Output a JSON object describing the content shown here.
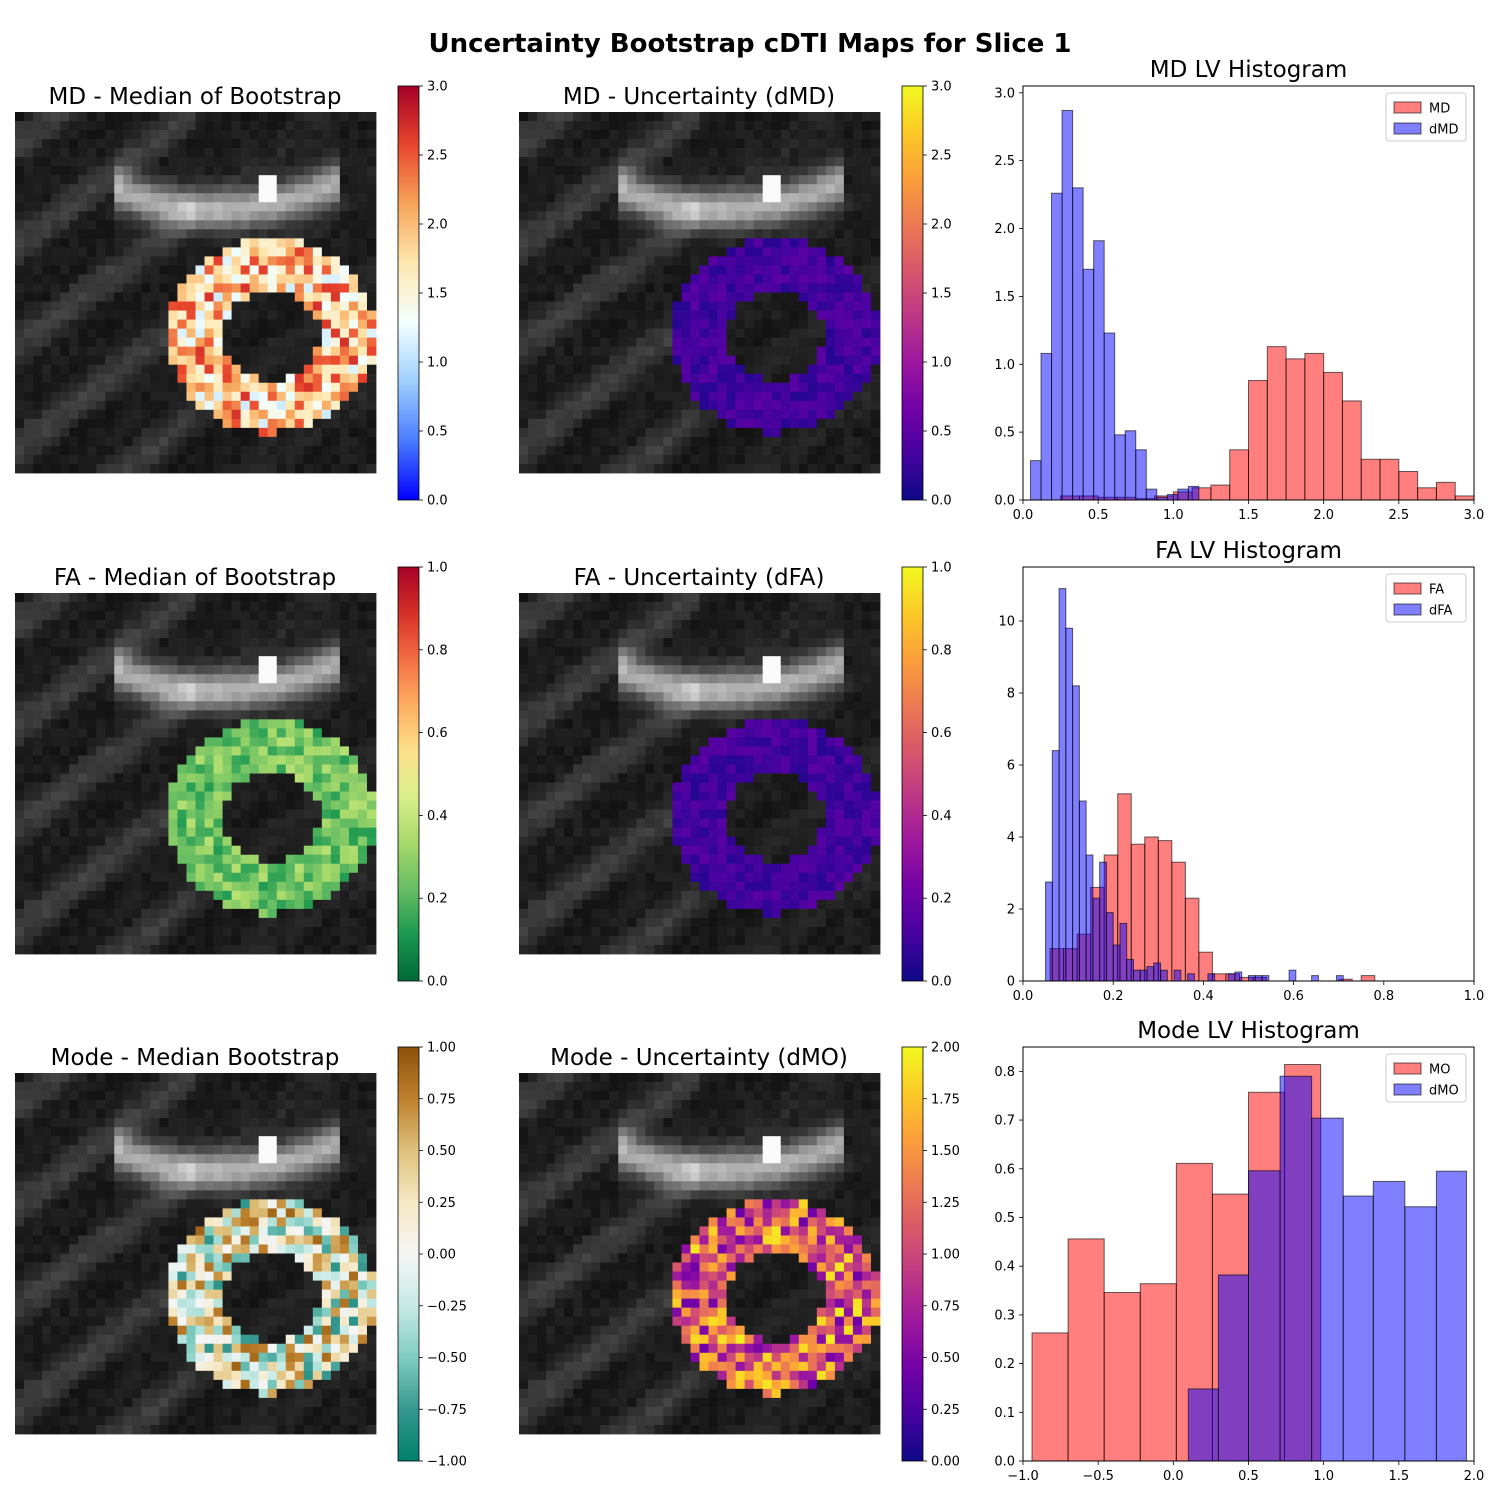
{
  "figure": {
    "suptitle": "Uncertainty Bootstrap cDTI Maps for Slice 1"
  },
  "colors": {
    "hist_primary": "#ff0000",
    "hist_secondary": "#0000ff",
    "hist_alpha": 0.5,
    "hist_edge": "#000000"
  },
  "rows": [
    {
      "median_panel": {
        "title": "MD - Median of Bootstrap",
        "colormap": "RdYlBu_r",
        "colorbar": {
          "min": 0.0,
          "max": 3.0,
          "ticks": [
            "0.0",
            "0.5",
            "1.0",
            "1.5",
            "2.0",
            "2.5",
            "3.0"
          ]
        }
      },
      "uncert_panel": {
        "title": "MD - Uncertainty (dMD)",
        "colormap": "plasma",
        "colorbar": {
          "min": 0.0,
          "max": 3.0,
          "ticks": [
            "0.0",
            "0.5",
            "1.0",
            "1.5",
            "2.0",
            "2.5",
            "3.0"
          ]
        }
      }
    },
    {
      "median_panel": {
        "title": "FA - Median of Bootstrap",
        "colormap": "RdYlGn_r",
        "colorbar": {
          "min": 0.0,
          "max": 1.0,
          "ticks": [
            "0.0",
            "0.2",
            "0.4",
            "0.6",
            "0.8",
            "1.0"
          ]
        }
      },
      "uncert_panel": {
        "title": "FA - Uncertainty (dFA)",
        "colormap": "plasma",
        "colorbar": {
          "min": 0.0,
          "max": 1.0,
          "ticks": [
            "0.0",
            "0.2",
            "0.4",
            "0.6",
            "0.8",
            "1.0"
          ]
        }
      }
    },
    {
      "median_panel": {
        "title": "Mode - Median Bootstrap",
        "colormap": "BrBG_r",
        "colorbar": {
          "min": -1.0,
          "max": 1.0,
          "ticks": [
            "−1.00",
            "−0.75",
            "−0.50",
            "−0.25",
            "0.00",
            "0.25",
            "0.50",
            "0.75",
            "1.00"
          ]
        }
      },
      "uncert_panel": {
        "title": "Mode - Uncertainty (dMO)",
        "colormap": "plasma",
        "colorbar": {
          "min": 0.0,
          "max": 2.0,
          "ticks": [
            "0.00",
            "0.25",
            "0.50",
            "0.75",
            "1.00",
            "1.25",
            "1.50",
            "1.75",
            "2.00"
          ]
        }
      }
    }
  ],
  "chart_data": [
    {
      "type": "bar",
      "title": "MD LV Histogram",
      "xlim": [
        0.0,
        3.0
      ],
      "ylim": [
        0.0,
        3.05
      ],
      "xticks": [
        "0.0",
        "0.5",
        "1.0",
        "1.5",
        "2.0",
        "2.5",
        "3.0"
      ],
      "yticks": [
        "0.0",
        "0.5",
        "1.0",
        "1.5",
        "2.0",
        "2.5",
        "3.0"
      ],
      "legend_position": "top-right",
      "series": [
        {
          "name": "MD",
          "bins": [
            [
              0.25,
              0.375,
              0.03
            ],
            [
              0.375,
              0.5,
              0.03
            ],
            [
              0.5,
              0.625,
              0.02
            ],
            [
              0.625,
              0.75,
              0.02
            ],
            [
              0.75,
              0.875,
              0.01
            ],
            [
              0.875,
              1.0,
              0.03
            ],
            [
              1.0,
              1.125,
              0.06
            ],
            [
              1.125,
              1.25,
              0.09
            ],
            [
              1.25,
              1.375,
              0.11
            ],
            [
              1.375,
              1.5,
              0.37
            ],
            [
              1.5,
              1.625,
              0.88
            ],
            [
              1.625,
              1.75,
              1.13
            ],
            [
              1.75,
              1.875,
              1.04
            ],
            [
              1.875,
              2.0,
              1.08
            ],
            [
              2.0,
              2.125,
              0.94
            ],
            [
              2.125,
              2.25,
              0.73
            ],
            [
              2.25,
              2.375,
              0.3
            ],
            [
              2.375,
              2.5,
              0.3
            ],
            [
              2.5,
              2.625,
              0.21
            ],
            [
              2.625,
              2.75,
              0.09
            ],
            [
              2.75,
              2.875,
              0.13
            ],
            [
              2.875,
              3.0,
              0.03
            ],
            [
              3.0,
              3.125,
              0.06
            ]
          ]
        },
        {
          "name": "dMD",
          "bins": [
            [
              0.05,
              0.12,
              0.29
            ],
            [
              0.12,
              0.19,
              1.08
            ],
            [
              0.19,
              0.26,
              2.26
            ],
            [
              0.26,
              0.33,
              2.87
            ],
            [
              0.33,
              0.4,
              2.3
            ],
            [
              0.4,
              0.47,
              1.7
            ],
            [
              0.47,
              0.54,
              1.91
            ],
            [
              0.54,
              0.61,
              1.23
            ],
            [
              0.61,
              0.68,
              0.48
            ],
            [
              0.68,
              0.75,
              0.51
            ],
            [
              0.75,
              0.82,
              0.37
            ],
            [
              0.82,
              0.89,
              0.08
            ],
            [
              0.89,
              0.96,
              0.02
            ],
            [
              0.96,
              1.03,
              0.04
            ],
            [
              1.03,
              1.1,
              0.08
            ],
            [
              1.1,
              1.17,
              0.1
            ]
          ]
        }
      ]
    },
    {
      "type": "bar",
      "title": "FA LV Histogram",
      "xlim": [
        0.0,
        1.0
      ],
      "ylim": [
        0.0,
        11.5
      ],
      "xticks": [
        "0.0",
        "0.2",
        "0.4",
        "0.6",
        "0.8",
        "1.0"
      ],
      "yticks": [
        "0",
        "2",
        "4",
        "6",
        "8",
        "10"
      ],
      "legend_position": "top-right",
      "series": [
        {
          "name": "FA",
          "bins": [
            [
              0.06,
              0.09,
              0.9
            ],
            [
              0.09,
              0.12,
              0.9
            ],
            [
              0.12,
              0.15,
              1.3
            ],
            [
              0.15,
              0.18,
              2.6
            ],
            [
              0.18,
              0.21,
              3.5
            ],
            [
              0.21,
              0.24,
              5.2
            ],
            [
              0.24,
              0.27,
              3.8
            ],
            [
              0.27,
              0.3,
              4.0
            ],
            [
              0.3,
              0.33,
              3.9
            ],
            [
              0.33,
              0.36,
              3.3
            ],
            [
              0.36,
              0.39,
              2.3
            ],
            [
              0.39,
              0.42,
              0.8
            ],
            [
              0.42,
              0.45,
              0.2
            ],
            [
              0.45,
              0.48,
              0.2
            ],
            [
              0.48,
              0.51,
              0.1
            ],
            [
              0.51,
              0.54,
              0.1
            ],
            [
              0.7,
              0.73,
              0.05
            ],
            [
              0.75,
              0.78,
              0.15
            ]
          ]
        },
        {
          "name": "dFA",
          "bins": [
            [
              0.05,
              0.065,
              2.75
            ],
            [
              0.065,
              0.08,
              6.4
            ],
            [
              0.08,
              0.095,
              10.9
            ],
            [
              0.095,
              0.11,
              9.8
            ],
            [
              0.11,
              0.125,
              8.2
            ],
            [
              0.125,
              0.14,
              5.0
            ],
            [
              0.14,
              0.155,
              3.5
            ],
            [
              0.155,
              0.17,
              2.3
            ],
            [
              0.17,
              0.185,
              3.3
            ],
            [
              0.185,
              0.2,
              1.9
            ],
            [
              0.2,
              0.215,
              1.0
            ],
            [
              0.215,
              0.23,
              1.6
            ],
            [
              0.23,
              0.245,
              0.6
            ],
            [
              0.245,
              0.26,
              0.3
            ],
            [
              0.26,
              0.275,
              0.3
            ],
            [
              0.275,
              0.29,
              0.4
            ],
            [
              0.29,
              0.305,
              0.5
            ],
            [
              0.305,
              0.32,
              0.3
            ],
            [
              0.335,
              0.35,
              0.3
            ],
            [
              0.365,
              0.38,
              0.2
            ],
            [
              0.41,
              0.425,
              0.2
            ],
            [
              0.455,
              0.47,
              0.2
            ],
            [
              0.47,
              0.485,
              0.25
            ],
            [
              0.5,
              0.515,
              0.15
            ],
            [
              0.515,
              0.53,
              0.15
            ],
            [
              0.53,
              0.545,
              0.15
            ],
            [
              0.59,
              0.605,
              0.3
            ],
            [
              0.64,
              0.655,
              0.15
            ],
            [
              0.695,
              0.71,
              0.15
            ]
          ]
        }
      ]
    },
    {
      "type": "bar",
      "title": "Mode LV Histogram",
      "xlim": [
        -1.0,
        2.0
      ],
      "ylim": [
        0.0,
        0.85
      ],
      "xticks": [
        "−1.0",
        "−0.5",
        "0.0",
        "0.5",
        "1.0",
        "1.5",
        "2.0"
      ],
      "yticks": [
        "0.0",
        "0.1",
        "0.2",
        "0.3",
        "0.4",
        "0.5",
        "0.6",
        "0.7",
        "0.8"
      ],
      "legend_position": "top-right",
      "series": [
        {
          "name": "MO",
          "bins": [
            [
              -0.94,
              -0.7,
              0.263
            ],
            [
              -0.7,
              -0.46,
              0.456
            ],
            [
              -0.46,
              -0.22,
              0.346
            ],
            [
              -0.22,
              0.02,
              0.364
            ],
            [
              0.02,
              0.26,
              0.611
            ],
            [
              0.26,
              0.5,
              0.548
            ],
            [
              0.5,
              0.74,
              0.757
            ],
            [
              0.74,
              0.98,
              0.814
            ]
          ]
        },
        {
          "name": "dMO",
          "bins": [
            [
              0.1,
              0.3,
              0.148
            ],
            [
              0.3,
              0.5,
              0.382
            ],
            [
              0.5,
              0.71,
              0.596
            ],
            [
              0.71,
              0.92,
              0.79
            ],
            [
              0.92,
              1.13,
              0.704
            ],
            [
              1.13,
              1.33,
              0.544
            ],
            [
              1.33,
              1.54,
              0.574
            ],
            [
              1.54,
              1.75,
              0.522
            ],
            [
              1.75,
              1.95,
              0.595
            ]
          ]
        }
      ]
    }
  ]
}
